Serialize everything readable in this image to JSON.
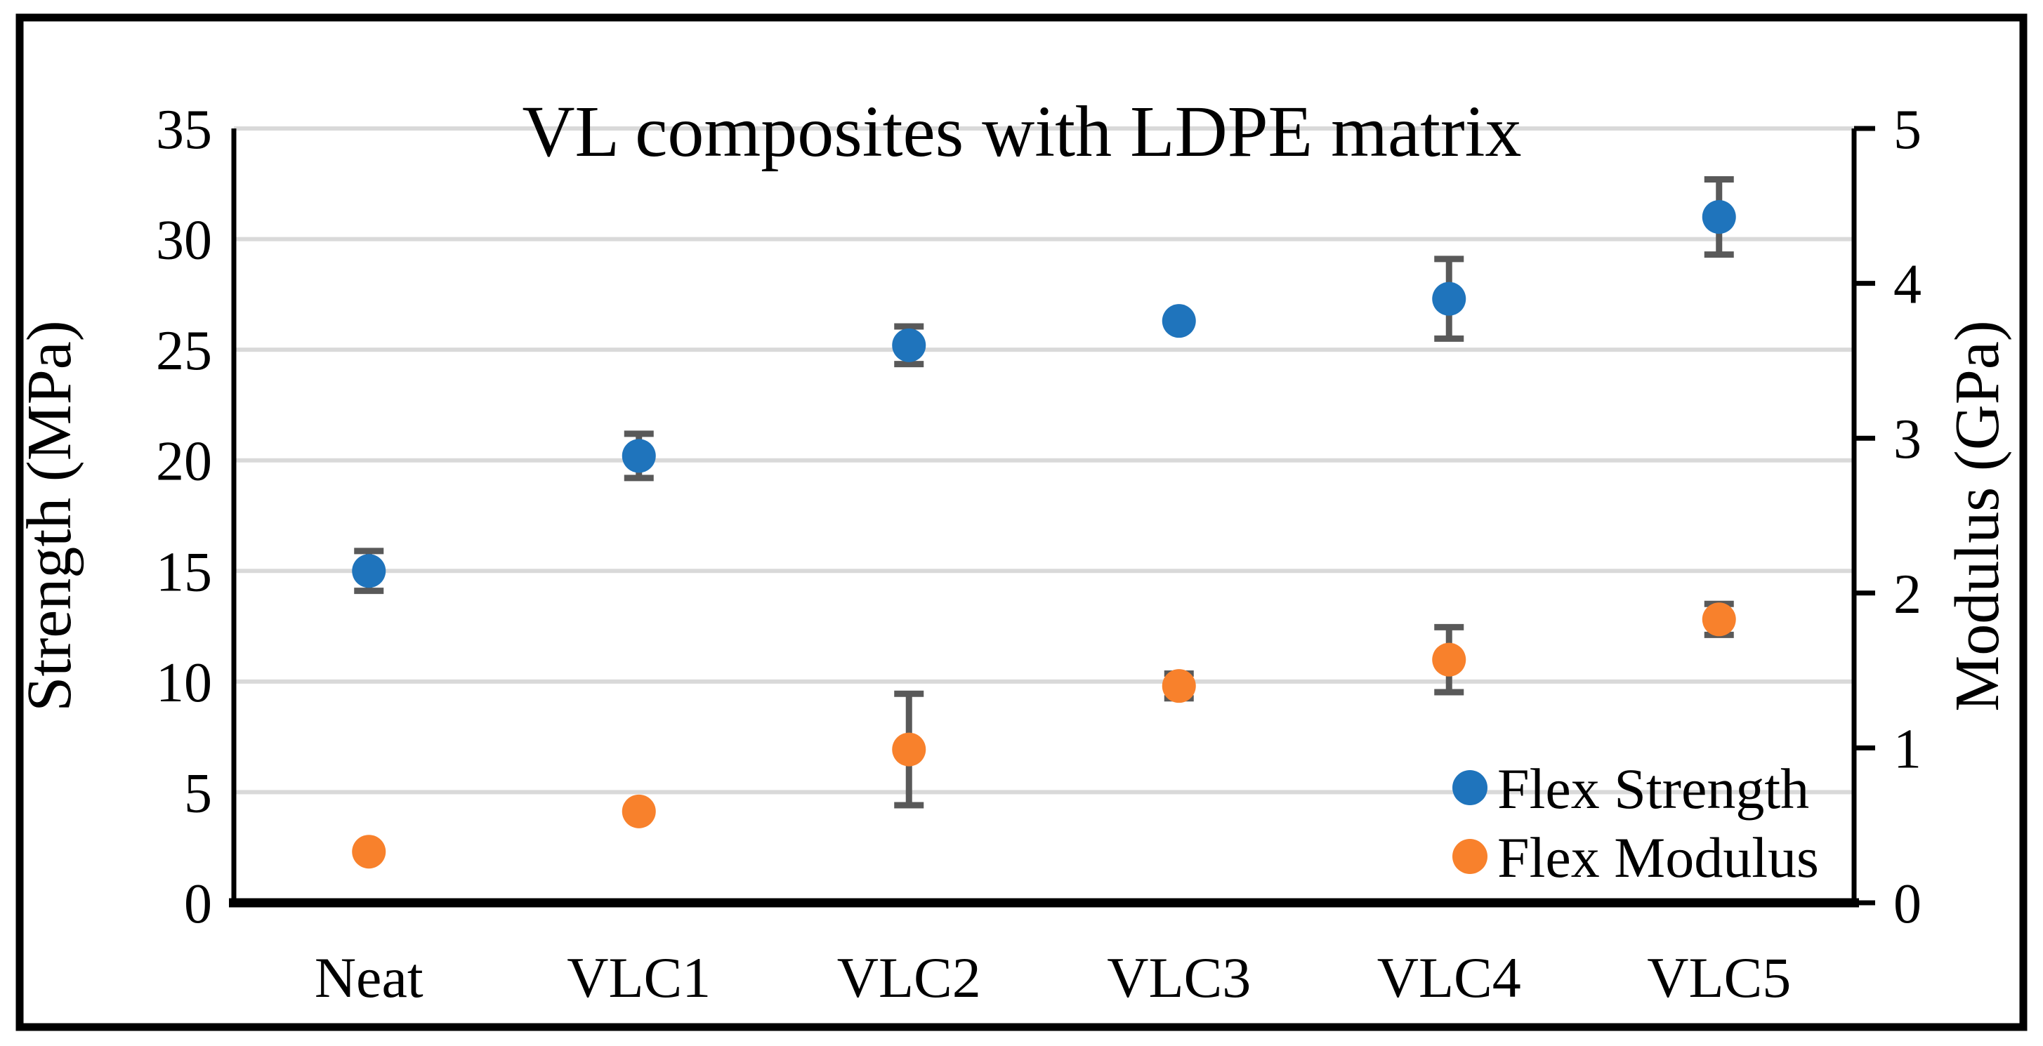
{
  "figure": {
    "background": "#FFFFFF",
    "border_color": "#000000"
  },
  "chart_data": {
    "type": "scatter",
    "title": "VL composites with LDPE matrix",
    "categories": [
      "Neat",
      "VLC1",
      "VLC2",
      "VLC3",
      "VLC4",
      "VLC5"
    ],
    "axes": {
      "left": {
        "label": "Strength (MPa)",
        "min": 0,
        "max": 35,
        "tick_step": 5,
        "ticks": [
          0,
          5,
          10,
          15,
          20,
          25,
          30,
          35
        ]
      },
      "right": {
        "label": "Modulus (GPa)",
        "min": 0,
        "max": 5,
        "tick_step": 1,
        "ticks": [
          0,
          1,
          2,
          3,
          4,
          5
        ]
      }
    },
    "series": [
      {
        "name": "Flex Strength",
        "axis": "left",
        "units": "MPa",
        "marker_color": "#1F74BC",
        "values": [
          15.0,
          20.2,
          25.2,
          26.3,
          27.3,
          31.0
        ],
        "error_bars": [
          0.9,
          1.0,
          0.85,
          0,
          1.8,
          1.7
        ]
      },
      {
        "name": "Flex Modulus",
        "axis": "right",
        "units": "GPa",
        "marker_color": "#F8812C",
        "values": [
          0.33,
          0.59,
          0.99,
          1.4,
          1.57,
          1.83
        ],
        "error_bars": [
          0,
          0,
          0.36,
          0.08,
          0.21,
          0.1
        ]
      }
    ],
    "legend": {
      "position": "inside-bottom-right",
      "entries": [
        "Flex Strength",
        "Flex Modulus"
      ]
    },
    "grid": {
      "show": true,
      "color": "#D9D9D9"
    },
    "error_bar_color": "#595959",
    "axis_color": "#000000"
  }
}
